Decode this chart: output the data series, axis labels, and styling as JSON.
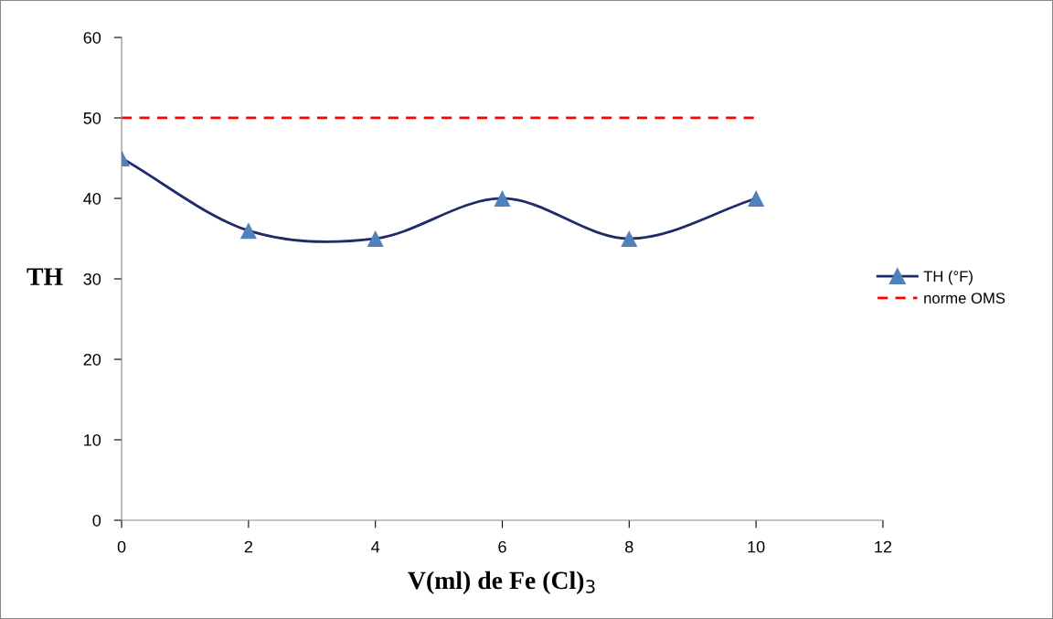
{
  "chart_data": {
    "type": "line",
    "xlabel": "V(ml) de Fe (Cl)$_{3}$",
    "ylabel": "TH",
    "x": [
      0,
      2,
      4,
      6,
      8,
      10
    ],
    "series": [
      {
        "name": "TH (°F)",
        "color": "#1f2a6b",
        "colors": [
          "#4f81bd",
          "#4f81bd",
          "#4f81bd",
          "#4f81bd",
          "#4f81bd",
          "#4f81bd"
        ],
        "marker": "triangle",
        "line_style": "solid",
        "values": [
          45,
          36,
          35,
          40,
          35,
          40
        ]
      },
      {
        "name": "norme OMS",
        "color": "#ff0000",
        "marker": "none",
        "line_style": "dashed",
        "values": [
          50,
          50,
          50,
          50,
          50,
          50
        ]
      }
    ],
    "xlim": [
      0,
      12
    ],
    "xticks": [
      0,
      2,
      4,
      6,
      8,
      10,
      12
    ],
    "ylim": [
      0,
      60
    ],
    "yticks": [
      0,
      10,
      20,
      30,
      40,
      50,
      60
    ],
    "grid": false,
    "legend": "right"
  }
}
